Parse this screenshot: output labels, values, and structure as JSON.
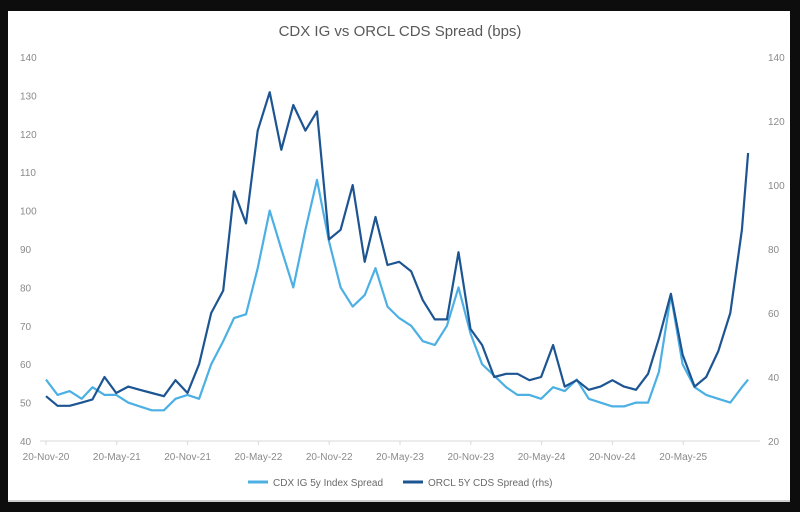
{
  "chart_data": {
    "type": "line",
    "title": "CDX IG vs ORCL CDS Spread (bps)",
    "xlabel": "",
    "ylabel": "",
    "x_tick_labels": [
      "20-Nov-20",
      "20-May-21",
      "20-Nov-21",
      "20-May-22",
      "20-Nov-22",
      "20-May-23",
      "20-Nov-23",
      "20-May-24",
      "20-Nov-24",
      "20-May-25"
    ],
    "y_left_ticks": [
      "40",
      "50",
      "60",
      "70",
      "80",
      "90",
      "100",
      "110",
      "120",
      "130",
      "140"
    ],
    "y_right_ticks": [
      "20",
      "40",
      "60",
      "80",
      "100",
      "120",
      "140"
    ],
    "ylim_left": [
      40,
      140
    ],
    "ylim_right": [
      20,
      140
    ],
    "grid": false,
    "legend_position": "bottom",
    "x": [
      "2020-11-20",
      "2020-12-20",
      "2021-01-20",
      "2021-02-20",
      "2021-03-20",
      "2021-04-20",
      "2021-05-20",
      "2021-06-20",
      "2021-07-20",
      "2021-08-20",
      "2021-09-20",
      "2021-10-20",
      "2021-11-20",
      "2021-12-20",
      "2022-01-20",
      "2022-02-20",
      "2022-03-20",
      "2022-04-20",
      "2022-05-20",
      "2022-06-20",
      "2022-07-20",
      "2022-08-20",
      "2022-09-20",
      "2022-10-20",
      "2022-11-20",
      "2022-12-20",
      "2023-01-20",
      "2023-02-20",
      "2023-03-20",
      "2023-04-20",
      "2023-05-20",
      "2023-06-20",
      "2023-07-20",
      "2023-08-20",
      "2023-09-20",
      "2023-10-20",
      "2023-11-20",
      "2023-12-20",
      "2024-01-20",
      "2024-02-20",
      "2024-03-20",
      "2024-04-20",
      "2024-05-20",
      "2024-06-20",
      "2024-07-20",
      "2024-08-20",
      "2024-09-20",
      "2024-10-20",
      "2024-11-20",
      "2024-12-20",
      "2025-01-20",
      "2025-02-20",
      "2025-03-20",
      "2025-04-20",
      "2025-05-20",
      "2025-06-20",
      "2025-07-20",
      "2025-08-20",
      "2025-09-20",
      "2025-10-20",
      "2025-11-05"
    ],
    "series": [
      {
        "name": "CDX IG 5y Index Spread",
        "axis": "left",
        "color": "#4cb0e4",
        "values": [
          56,
          52,
          53,
          51,
          54,
          52,
          52,
          50,
          49,
          48,
          48,
          51,
          52,
          51,
          60,
          66,
          72,
          73,
          85,
          100,
          90,
          80,
          95,
          108,
          92,
          80,
          75,
          78,
          85,
          75,
          72,
          70,
          66,
          65,
          70,
          80,
          68,
          60,
          57,
          54,
          52,
          52,
          51,
          54,
          53,
          56,
          51,
          50,
          49,
          49,
          50,
          50,
          58,
          78,
          60,
          54,
          52,
          51,
          50,
          54,
          56
        ]
      },
      {
        "name": "ORCL 5Y CDS Spread (rhs)",
        "axis": "right",
        "color": "#1d5592",
        "values": [
          34,
          31,
          31,
          32,
          33,
          40,
          35,
          37,
          36,
          35,
          34,
          39,
          35,
          44,
          60,
          67,
          98,
          88,
          117,
          129,
          111,
          125,
          117,
          123,
          83,
          86,
          100,
          76,
          90,
          75,
          76,
          73,
          64,
          58,
          58,
          79,
          55,
          50,
          40,
          41,
          41,
          39,
          40,
          50,
          37,
          39,
          36,
          37,
          39,
          37,
          36,
          41,
          52,
          66,
          47,
          37,
          40,
          48,
          60,
          86,
          110
        ]
      }
    ]
  }
}
